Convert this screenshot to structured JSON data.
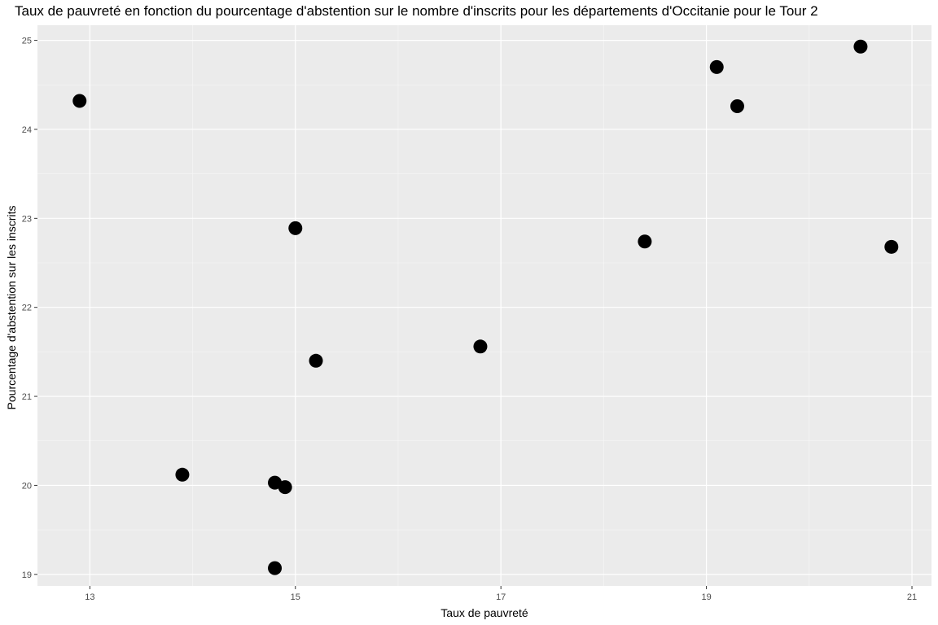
{
  "chart_data": {
    "type": "scatter",
    "title": "Taux de pauvreté en fonction du pourcentage d'abstention sur le nombre d'inscrits pour les départements d'Occitanie pour le Tour 2",
    "xlabel": "Taux de pauvreté",
    "ylabel": "Pourcentage d'abstention sur les inscrits",
    "xlim": [
      12.49,
      21.19
    ],
    "ylim": [
      18.87,
      25.17
    ],
    "x_ticks": [
      13,
      15,
      17,
      19,
      21
    ],
    "y_ticks": [
      19,
      20,
      21,
      22,
      23,
      24,
      25
    ],
    "grid": true,
    "legend": "none",
    "point_color": "#000000",
    "panel_background": "#ebebeb",
    "points": [
      {
        "x": 12.9,
        "y": 24.32
      },
      {
        "x": 13.9,
        "y": 20.12
      },
      {
        "x": 14.8,
        "y": 20.03
      },
      {
        "x": 14.8,
        "y": 19.07
      },
      {
        "x": 14.9,
        "y": 19.98
      },
      {
        "x": 15.0,
        "y": 22.89
      },
      {
        "x": 15.2,
        "y": 21.4
      },
      {
        "x": 16.8,
        "y": 21.56
      },
      {
        "x": 18.4,
        "y": 22.74
      },
      {
        "x": 19.1,
        "y": 24.7
      },
      {
        "x": 19.3,
        "y": 24.26
      },
      {
        "x": 20.5,
        "y": 24.93
      },
      {
        "x": 20.8,
        "y": 22.68
      }
    ]
  }
}
